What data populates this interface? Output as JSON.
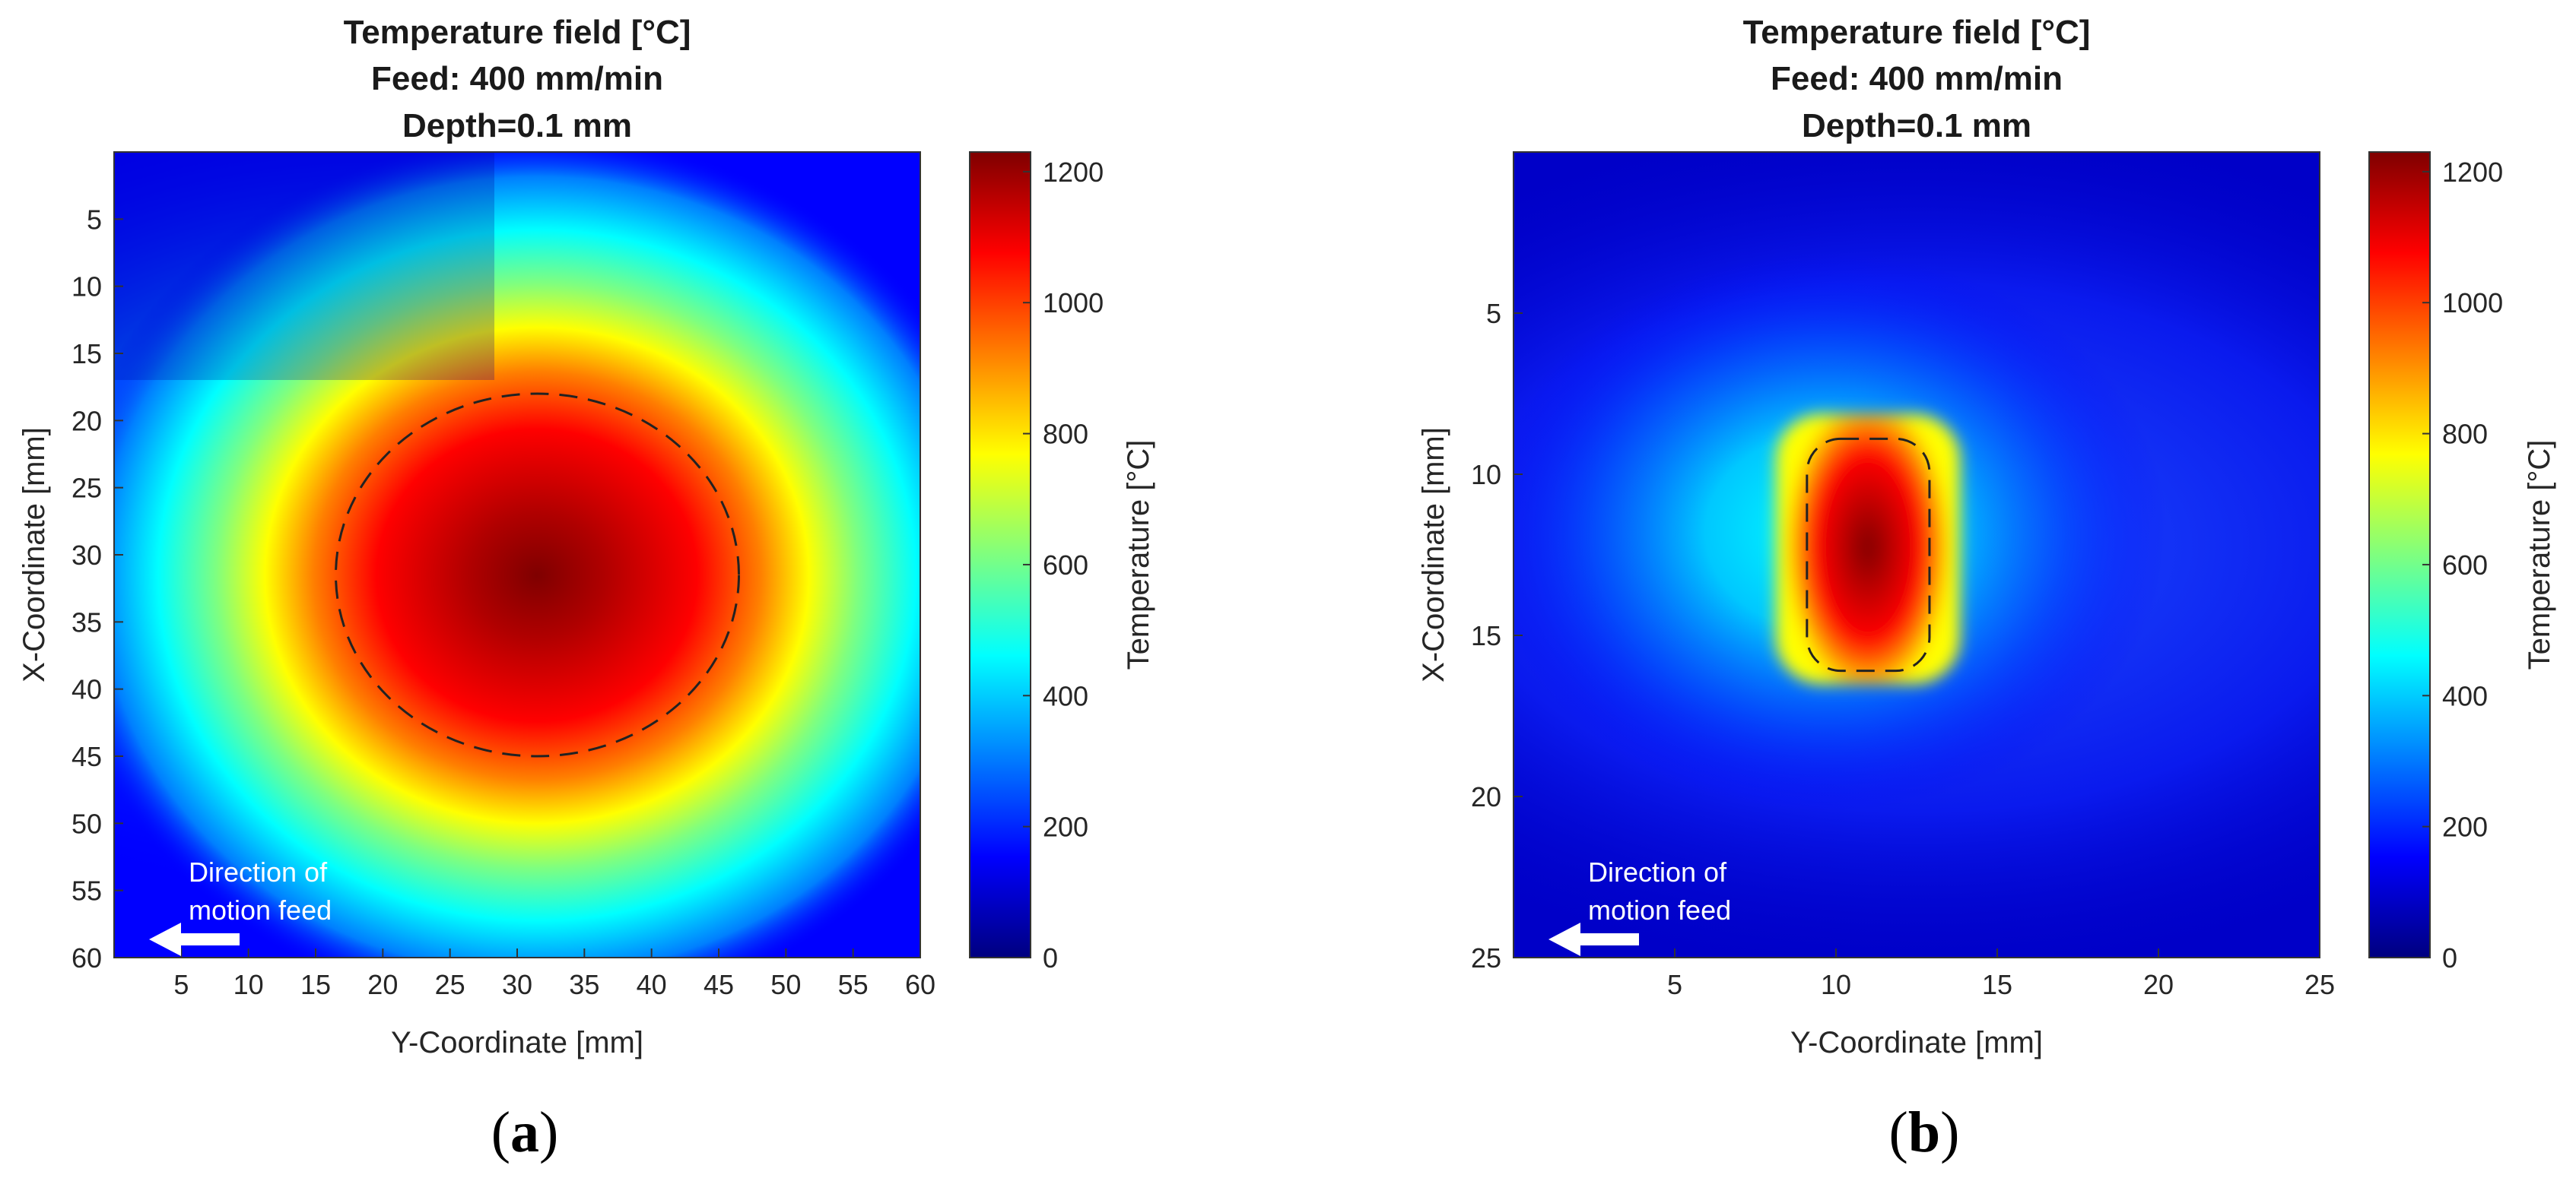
{
  "colors": {
    "jet_stops": [
      "#00007f",
      "#0000ff",
      "#007fff",
      "#00ffff",
      "#7fff7f",
      "#ffff00",
      "#ff7f00",
      "#ff0000",
      "#7f0000"
    ],
    "annotation": "#ffffff",
    "contour": "#222222"
  },
  "chart_data": [
    {
      "type": "heatmap",
      "panel_label": "a",
      "title_lines": [
        "Temperature field [°C]",
        "Feed: 400 mm/min",
        "Depth=0.1 mm"
      ],
      "xlabel": "Y-Coordinate [mm]",
      "ylabel": "X-Coordinate [mm]",
      "xlim": [
        0,
        60
      ],
      "ylim": [
        0,
        60
      ],
      "y_reversed": true,
      "xticks": [
        5,
        10,
        15,
        20,
        25,
        30,
        35,
        40,
        45,
        50,
        55,
        60
      ],
      "yticks": [
        5,
        10,
        15,
        20,
        25,
        30,
        35,
        40,
        45,
        50,
        55,
        60
      ],
      "peak_temperature": 1230,
      "hot_center": {
        "y": 31.5,
        "x": 31.5
      },
      "ambient_temperature": 40,
      "dashed_contour": {
        "center_y": 31.5,
        "center_x": 31.5,
        "half_width_y": 15,
        "half_width_x": 13.5
      },
      "colorbar": {
        "label": "Temperature [°C]",
        "ticks": [
          0,
          200,
          400,
          600,
          800,
          1000,
          1200
        ],
        "range": [
          0,
          1230
        ]
      },
      "annotation": {
        "text_lines": [
          "Direction of",
          "motion feed"
        ],
        "arrow": "left"
      }
    },
    {
      "type": "heatmap",
      "panel_label": "b",
      "title_lines": [
        "Temperature field [°C]",
        "Feed: 400 mm/min",
        "Depth=0.1 mm"
      ],
      "xlabel": "Y-Coordinate [mm]",
      "ylabel": "X-Coordinate [mm]",
      "xlim": [
        0,
        25
      ],
      "ylim": [
        0,
        25
      ],
      "y_reversed": true,
      "xticks": [
        5,
        10,
        15,
        20,
        25
      ],
      "yticks": [
        5,
        10,
        15,
        20,
        25
      ],
      "peak_temperature": 1230,
      "hot_center": {
        "y": 11,
        "x": 12.5
      },
      "ambient_temperature": 40,
      "dashed_contour": {
        "center_y": 11,
        "center_x": 12.5,
        "half_width_y": 1.9,
        "half_width_x": 3.6
      },
      "colorbar": {
        "label": "Temperature [°C]",
        "ticks": [
          0,
          200,
          400,
          600,
          800,
          1000,
          1200
        ],
        "range": [
          0,
          1230
        ]
      },
      "annotation": {
        "text_lines": [
          "Direction of",
          "motion feed"
        ],
        "arrow": "left"
      }
    }
  ]
}
